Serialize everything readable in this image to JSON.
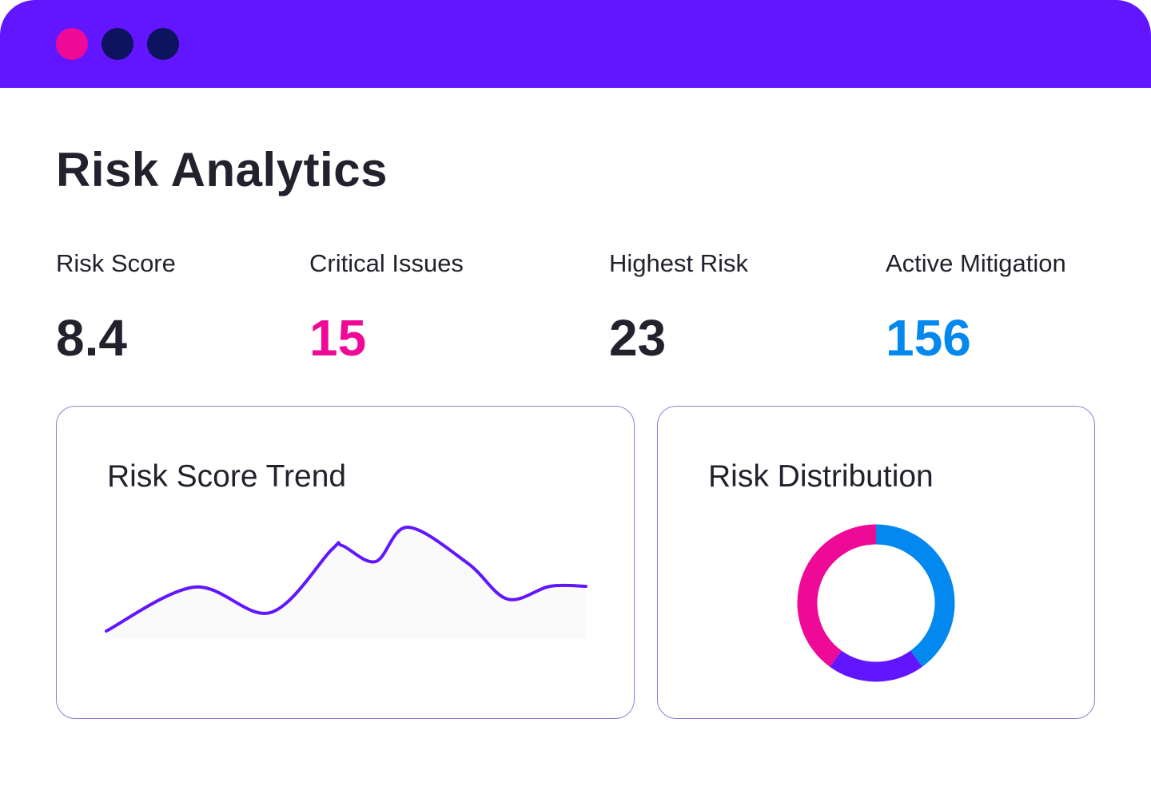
{
  "window": {
    "dots": [
      {
        "name": "close",
        "color": "#ee0a97"
      },
      {
        "name": "minimize",
        "color": "#0d135e"
      },
      {
        "name": "maximize",
        "color": "#0d135e"
      }
    ],
    "bar_color": "#6216ff"
  },
  "page": {
    "title": "Risk Analytics"
  },
  "stats": [
    {
      "label": "Risk Score",
      "value": "8.4",
      "color": "#22222e"
    },
    {
      "label": "Critical Issues",
      "value": "15",
      "color": "#ee0a97"
    },
    {
      "label": "Highest Risk",
      "value": "23",
      "color": "#22222e"
    },
    {
      "label": "Active Mitigation",
      "value": "156",
      "color": "#0288ef"
    }
  ],
  "cards": {
    "trend_title": "Risk Score Trend",
    "dist_title": "Risk Distribution"
  },
  "chart_data": [
    {
      "type": "area",
      "title": "Risk Score Trend",
      "x": [
        1,
        2,
        3,
        4,
        5,
        6,
        7,
        8,
        9,
        10,
        11
      ],
      "values": [
        10,
        65,
        33,
        112,
        117,
        97,
        140,
        95,
        50,
        66,
        66
      ],
      "line_color": "#6216ff",
      "fill_color": "#fafafa",
      "grid": false,
      "axes": false
    },
    {
      "type": "pie",
      "title": "Risk Distribution",
      "donut": true,
      "values": [
        40,
        20,
        40
      ],
      "colors": [
        "#0288ef",
        "#6216ff",
        "#ee0a97"
      ]
    }
  ]
}
